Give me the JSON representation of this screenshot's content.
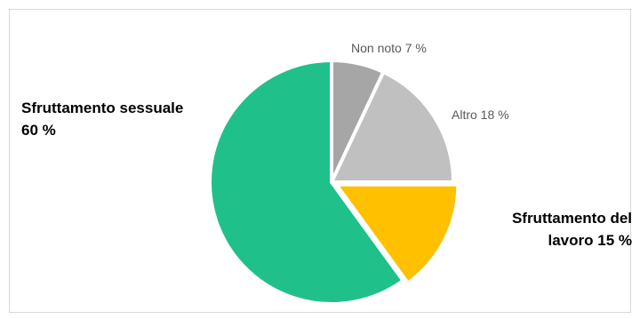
{
  "chart_data": {
    "type": "pie",
    "title": "",
    "slices": [
      {
        "label": "Non noto",
        "value": 7,
        "display": "Non noto 7 %",
        "color": "#a6a6a6"
      },
      {
        "label": "Altro",
        "value": 18,
        "display": "Altro 18 %",
        "color": "#c0c0c0"
      },
      {
        "label": "Sfruttamento del lavoro",
        "value": 15,
        "display_lines": [
          "Sfruttamento del",
          "lavoro 15 %"
        ],
        "color": "#ffc000"
      },
      {
        "label": "Sfruttamento sessuale",
        "value": 60,
        "display_lines": [
          "Sfruttamento sessuale",
          "60 %"
        ],
        "color": "#20c08a"
      }
    ],
    "legend": "none"
  }
}
